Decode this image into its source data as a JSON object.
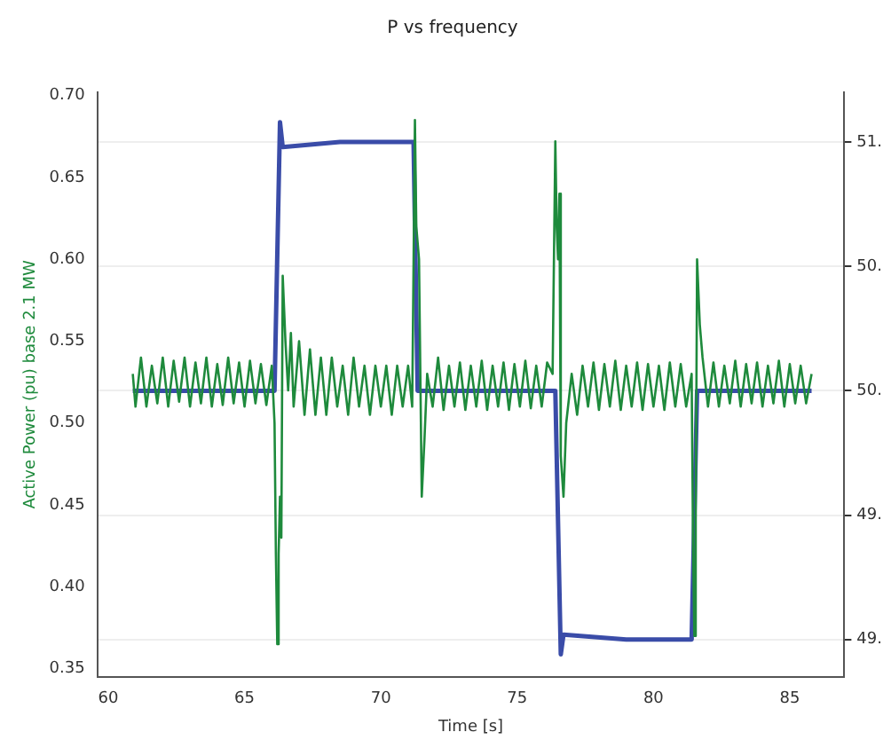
{
  "chart_data": {
    "type": "line",
    "title": "P vs frequency",
    "xlabel": "Time [s]",
    "ylabel": "Active Power (pu) base 2.1 MW",
    "xlim": [
      59.6,
      87.0
    ],
    "xticks": [
      60,
      65,
      70,
      75,
      80,
      85
    ],
    "ylim": [
      0.345,
      0.702
    ],
    "yticks": [
      0.35,
      {
        "value": 0.4,
        "label": "0.40"
      },
      0.45,
      {
        "value": 0.5,
        "label": "0.50"
      },
      0.55,
      {
        "value": 0.6,
        "label": "0.60"
      },
      0.65,
      {
        "value": 0.7,
        "label": "0.70"
      }
    ],
    "y2lim": [
      48.85,
      51.2
    ],
    "y2ticks": [
      {
        "value": 49.0,
        "label": "49."
      },
      {
        "value": 49.5,
        "label": "49."
      },
      {
        "value": 50.0,
        "label": "50."
      },
      {
        "value": 50.5,
        "label": "50."
      },
      {
        "value": 51.0,
        "label": "51."
      }
    ],
    "grid": "y2",
    "legend": false,
    "marker": "none",
    "line_style": "solid",
    "series": [
      {
        "color": "#1e8a3c",
        "x": [
          60.9,
          61.0,
          61.2,
          61.4,
          61.6,
          61.8,
          62.0,
          62.2,
          62.4,
          62.6,
          62.8,
          63.0,
          63.2,
          63.4,
          63.6,
          63.8,
          64.0,
          64.2,
          64.4,
          64.6,
          64.8,
          65.0,
          65.2,
          65.4,
          65.6,
          65.8,
          66.0,
          66.1,
          66.15,
          66.2,
          66.25,
          66.3,
          66.35,
          66.4,
          66.5,
          66.6,
          66.7,
          66.8,
          67.0,
          67.2,
          67.4,
          67.6,
          67.8,
          68.0,
          68.2,
          68.4,
          68.6,
          68.8,
          69.0,
          69.2,
          69.4,
          69.6,
          69.8,
          70.0,
          70.2,
          70.4,
          70.6,
          70.8,
          71.0,
          71.15,
          71.25,
          71.3,
          71.4,
          71.5,
          71.6,
          71.7,
          71.9,
          72.1,
          72.3,
          72.5,
          72.7,
          72.9,
          73.1,
          73.3,
          73.5,
          73.7,
          73.9,
          74.1,
          74.3,
          74.5,
          74.7,
          74.9,
          75.1,
          75.3,
          75.5,
          75.7,
          75.9,
          76.1,
          76.3,
          76.4,
          76.45,
          76.5,
          76.55,
          76.6,
          76.7,
          76.8,
          77.0,
          77.2,
          77.4,
          77.6,
          77.8,
          78.0,
          78.2,
          78.4,
          78.6,
          78.8,
          79.0,
          79.2,
          79.4,
          79.6,
          79.8,
          80.0,
          80.2,
          80.4,
          80.6,
          80.8,
          81.0,
          81.2,
          81.4,
          81.45,
          81.5,
          81.55,
          81.6,
          81.7,
          81.8,
          82.0,
          82.2,
          82.4,
          82.6,
          82.8,
          83.0,
          83.2,
          83.4,
          83.6,
          83.8,
          84.0,
          84.2,
          84.4,
          84.6,
          84.8,
          85.0,
          85.2,
          85.4,
          85.6,
          85.8
        ],
        "values": [
          0.53,
          0.51,
          0.54,
          0.51,
          0.535,
          0.512,
          0.54,
          0.51,
          0.538,
          0.513,
          0.54,
          0.51,
          0.537,
          0.512,
          0.54,
          0.51,
          0.536,
          0.511,
          0.54,
          0.512,
          0.537,
          0.51,
          0.538,
          0.512,
          0.536,
          0.511,
          0.535,
          0.5,
          0.42,
          0.365,
          0.42,
          0.455,
          0.43,
          0.59,
          0.55,
          0.52,
          0.555,
          0.51,
          0.55,
          0.505,
          0.545,
          0.505,
          0.54,
          0.505,
          0.54,
          0.51,
          0.535,
          0.505,
          0.54,
          0.51,
          0.535,
          0.505,
          0.535,
          0.51,
          0.535,
          0.505,
          0.535,
          0.51,
          0.535,
          0.51,
          0.685,
          0.62,
          0.6,
          0.455,
          0.49,
          0.53,
          0.51,
          0.54,
          0.508,
          0.535,
          0.51,
          0.537,
          0.508,
          0.535,
          0.51,
          0.538,
          0.508,
          0.535,
          0.51,
          0.537,
          0.508,
          0.536,
          0.51,
          0.538,
          0.509,
          0.535,
          0.51,
          0.537,
          0.53,
          0.672,
          0.62,
          0.6,
          0.64,
          0.48,
          0.455,
          0.5,
          0.53,
          0.505,
          0.535,
          0.51,
          0.537,
          0.508,
          0.536,
          0.51,
          0.538,
          0.508,
          0.535,
          0.51,
          0.537,
          0.508,
          0.536,
          0.51,
          0.535,
          0.508,
          0.537,
          0.51,
          0.536,
          0.51,
          0.53,
          0.43,
          0.37,
          0.44,
          0.6,
          0.56,
          0.54,
          0.51,
          0.537,
          0.51,
          0.535,
          0.512,
          0.538,
          0.51,
          0.536,
          0.512,
          0.537,
          0.51,
          0.535,
          0.512,
          0.538,
          0.51,
          0.536,
          0.512,
          0.535,
          0.512,
          0.53
        ]
      },
      {
        "color": "#3a4ca8",
        "axis": "y2",
        "x": [
          60.9,
          62.5,
          64.0,
          66.1,
          66.3,
          66.4,
          68.5,
          71.2,
          71.35,
          73.5,
          76.4,
          76.6,
          76.7,
          79.0,
          81.4,
          81.6,
          83.5,
          85.8
        ],
        "values": [
          50.0,
          50.0,
          50.0,
          50.0,
          51.08,
          50.98,
          51.0,
          51.0,
          50.0,
          50.0,
          50.0,
          48.94,
          49.02,
          49.0,
          49.0,
          50.0,
          50.0,
          50.0
        ]
      }
    ]
  }
}
